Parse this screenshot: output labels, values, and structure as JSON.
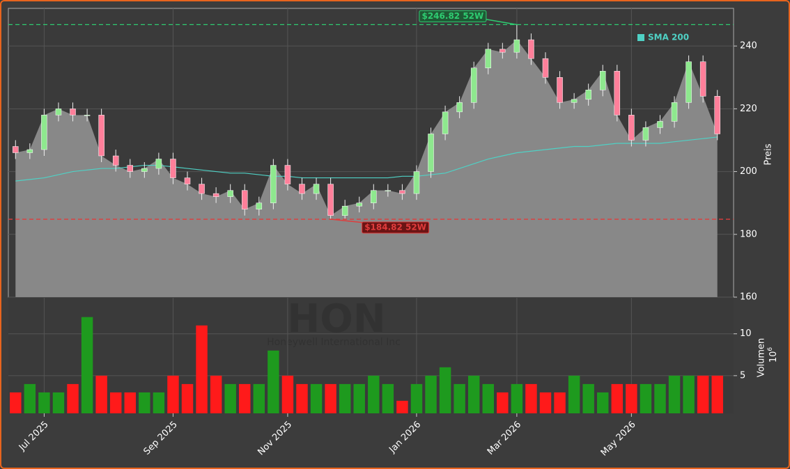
{
  "chart_data": {
    "type": "candlestick",
    "categories": [
      null,
      null,
      "Jul 2025",
      null,
      null,
      null,
      null,
      null,
      null,
      null,
      null,
      "Sep 2025",
      null,
      null,
      null,
      null,
      null,
      null,
      null,
      "Nov 2025",
      null,
      null,
      null,
      null,
      null,
      null,
      null,
      null,
      "Jan 2026",
      null,
      null,
      null,
      null,
      null,
      null,
      "Mar 2026",
      null,
      null,
      null,
      null,
      null,
      null,
      null,
      "May 2026",
      null,
      null,
      null,
      null,
      null,
      null
    ],
    "open": [
      208,
      206,
      207,
      218,
      220,
      218,
      218,
      205,
      202,
      200,
      201,
      204,
      198,
      196,
      193,
      192,
      194,
      188,
      190,
      202,
      196,
      193,
      196,
      186,
      189,
      190,
      194,
      194,
      193,
      200,
      212,
      219,
      222,
      233,
      239,
      238,
      242,
      236,
      230,
      222,
      223,
      226,
      232,
      218,
      210,
      214,
      216,
      222,
      235,
      224
    ],
    "high": [
      210,
      209,
      220,
      222,
      222,
      220,
      220,
      207,
      204,
      203,
      206,
      206,
      200,
      198,
      195,
      196,
      196,
      192,
      204,
      204,
      198,
      198,
      198,
      191,
      192,
      196,
      196,
      196,
      202,
      214,
      221,
      224,
      235,
      241,
      241,
      246.82,
      244,
      238,
      232,
      225,
      228,
      234,
      234,
      220,
      216,
      218,
      224,
      237,
      237,
      226
    ],
    "low": [
      204,
      204,
      205,
      216,
      216,
      216,
      203,
      200,
      198,
      198,
      199,
      196,
      194,
      191,
      190,
      190,
      186,
      186,
      188,
      194,
      191,
      191,
      184.82,
      185,
      187,
      188,
      192,
      191,
      191,
      198,
      210,
      217,
      220,
      231,
      236,
      236,
      234,
      228,
      220,
      220,
      221,
      224,
      216,
      208,
      208,
      212,
      214,
      220,
      222,
      210
    ],
    "close": [
      206,
      207,
      218,
      220,
      218,
      218,
      205,
      202,
      200,
      201,
      204,
      198,
      196,
      193,
      192,
      194,
      188,
      190,
      202,
      196,
      193,
      196,
      186,
      189,
      190,
      194,
      194,
      193,
      200,
      212,
      219,
      222,
      233,
      239,
      238,
      242,
      236,
      230,
      222,
      223,
      226,
      232,
      218,
      210,
      214,
      216,
      222,
      235,
      224,
      212
    ],
    "up_color": "#8ee88e",
    "down_color": "#ff7f9a",
    "area_color": "#888888",
    "series": [
      {
        "name": "SMA 200",
        "color": "#4fd1c5",
        "values": [
          197,
          197.5,
          198,
          199,
          200,
          200.5,
          201,
          201,
          201.5,
          202,
          202,
          201.5,
          201,
          200.5,
          200,
          199.5,
          199.5,
          199,
          198.5,
          198.5,
          198,
          198,
          198,
          198,
          198,
          198,
          198,
          198.5,
          198.5,
          199,
          199.5,
          201,
          202.5,
          204,
          205,
          206,
          206.5,
          207,
          207.5,
          208,
          208,
          208.5,
          209,
          209,
          209,
          209,
          209.5,
          210,
          210.5,
          211
        ]
      }
    ],
    "legend": "upper right",
    "ylim": [
      160,
      252
    ],
    "yticks": [
      160,
      180,
      200,
      220,
      240
    ],
    "ylabel": "Preis",
    "grid": true,
    "annotations": [
      {
        "value": 246.82,
        "label": "$246.82 52W",
        "color": "#2ecc71"
      },
      {
        "value": 184.82,
        "label": "$184.82 52W",
        "color": "#e03c3c"
      }
    ],
    "volume": {
      "values": [
        3,
        4,
        3,
        3,
        4,
        12,
        5,
        3,
        3,
        3,
        3,
        5,
        4,
        11,
        5,
        4,
        4,
        4,
        8,
        5,
        4,
        4,
        4,
        4,
        4,
        5,
        4,
        2,
        4,
        5,
        6,
        4,
        5,
        4,
        3,
        4,
        4,
        3,
        3,
        5,
        4,
        3,
        4,
        4,
        4,
        4,
        5,
        5,
        5,
        5
      ],
      "up_color": "#1e9a1e",
      "down_color": "#ff1a1a",
      "ylim": [
        0.5,
        14.3
      ],
      "yticks": [
        5,
        10
      ],
      "ylabel": "Volumen",
      "scale_base": "10",
      "scale_exponent": "6"
    },
    "watermark": "forexsignals.trade",
    "symbol": "HON",
    "company": "Honeywell International Inc"
  }
}
